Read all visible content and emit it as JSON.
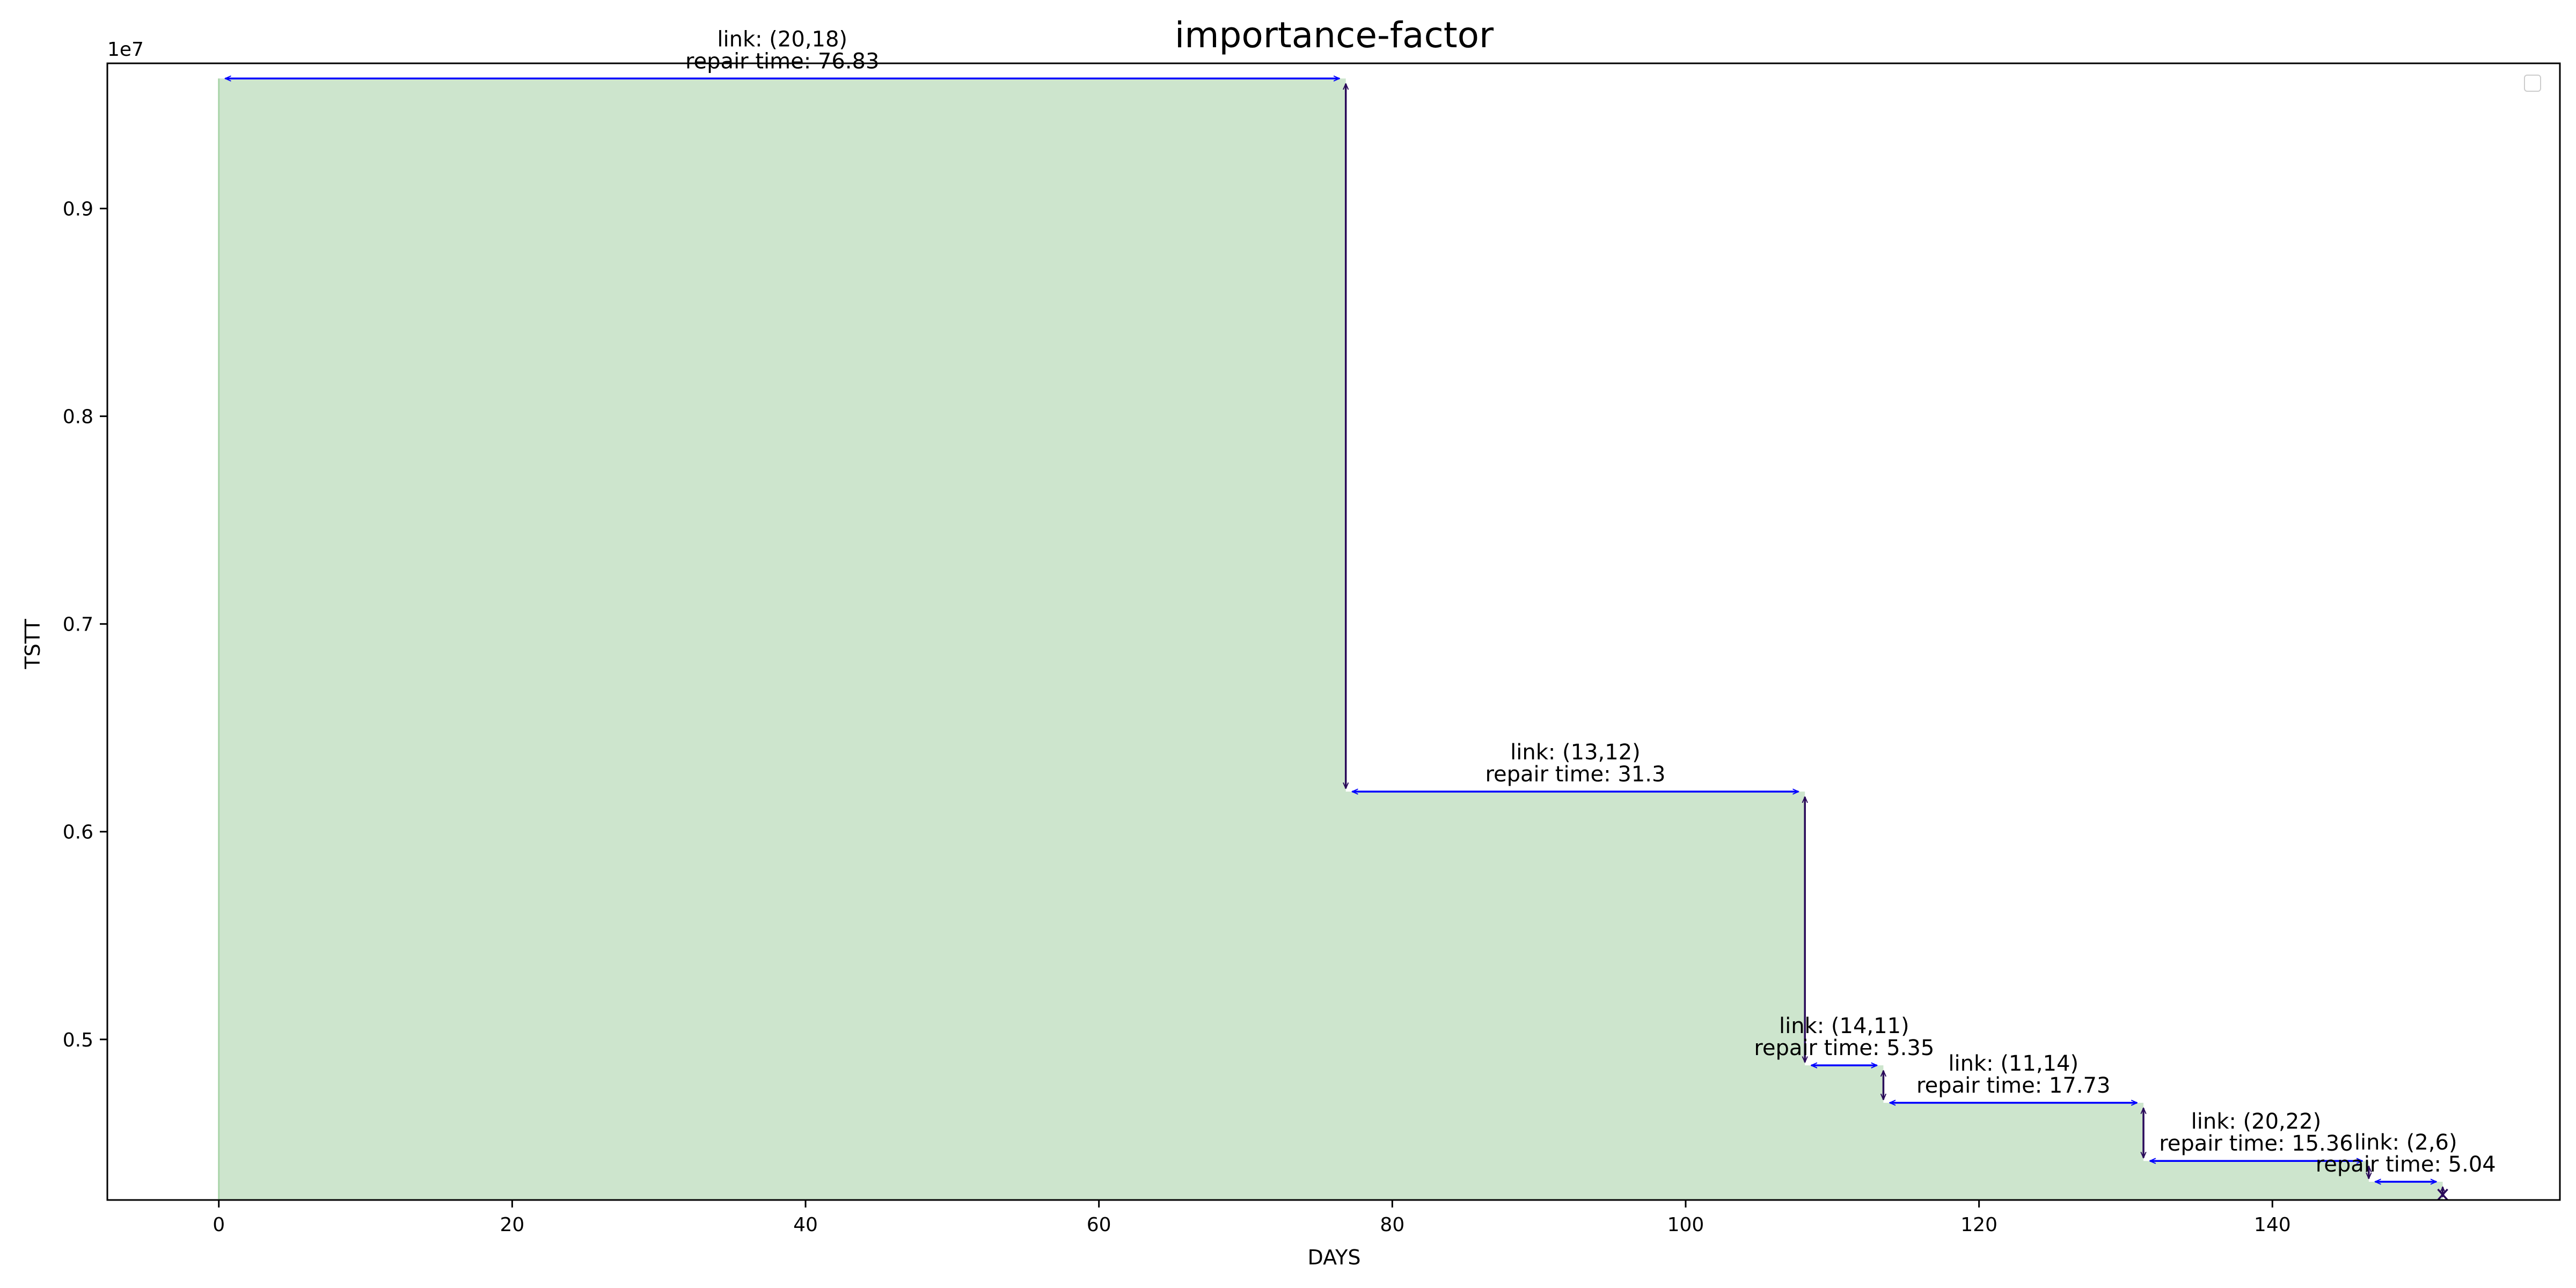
{
  "chart_data": {
    "type": "area",
    "title": "importance-factor",
    "xlabel": "DAYS",
    "ylabel": "TSTT",
    "y_offset_text": "1e7",
    "xlim": [
      -7.6,
      159.6
    ],
    "ylim": [
      0.4227,
      0.9699
    ],
    "y_scale_factor": 10000000,
    "x_ticks": [
      0,
      20,
      40,
      60,
      80,
      100,
      120,
      140
    ],
    "x_tick_labels": [
      "0",
      "20",
      "40",
      "60",
      "80",
      "100",
      "120",
      "140"
    ],
    "y_ticks": [
      0.5,
      0.6,
      0.7,
      0.8,
      0.9
    ],
    "y_tick_labels": [
      "0.5",
      "0.6",
      "0.7",
      "0.8",
      "0.9"
    ],
    "grid": false,
    "legend": "top-right",
    "colors": {
      "fill": "#cde5cd",
      "fill_edge": "#a9d4a9",
      "horizontal_arrow": "#0000ff",
      "vertical_arrow": "#2a0a5a",
      "end_marker": "#2a0a5a"
    },
    "steps": [
      {
        "x_start": 0.0,
        "x_end": 76.83,
        "y": 0.9626,
        "link": "link: (20,18)",
        "repair": "repair time: 76.83"
      },
      {
        "x_start": 76.83,
        "x_end": 108.13,
        "y": 0.6193,
        "link": "link: (13,12)",
        "repair": "repair time: 31.3"
      },
      {
        "x_start": 108.13,
        "x_end": 113.48,
        "y": 0.4875,
        "link": "link: (14,11)",
        "repair": "repair time: 5.35"
      },
      {
        "x_start": 113.48,
        "x_end": 131.21,
        "y": 0.4695,
        "link": "link: (11,14)",
        "repair": "repair time: 17.73"
      },
      {
        "x_start": 131.21,
        "x_end": 146.57,
        "y": 0.4415,
        "link": "link: (20,22)",
        "repair": "repair time: 15.36"
      },
      {
        "x_start": 146.57,
        "x_end": 151.61,
        "y": 0.4315,
        "link": "link: (2,6)",
        "repair": "repair time: 5.04"
      }
    ],
    "end_point": {
      "x": 151.61,
      "y": 0.4227
    }
  }
}
